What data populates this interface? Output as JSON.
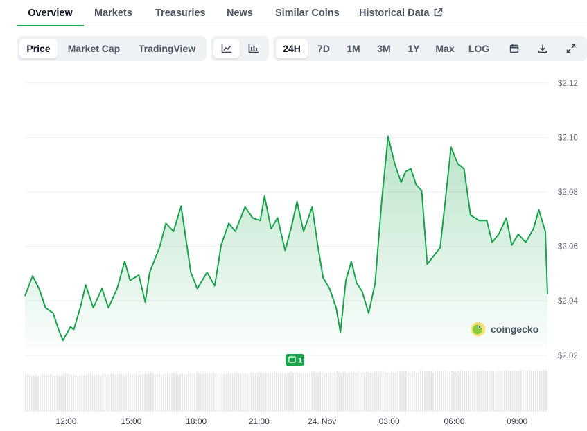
{
  "tabs": [
    {
      "label": "Overview",
      "active": true
    },
    {
      "label": "Markets"
    },
    {
      "label": "Treasuries"
    },
    {
      "label": "News"
    },
    {
      "label": "Similar Coins"
    },
    {
      "label": "Historical Data",
      "icon": "external-link-icon"
    }
  ],
  "view_modes": [
    "Price",
    "Market Cap",
    "TradingView"
  ],
  "view_active": "Price",
  "chart_types": [
    {
      "icon": "line-chart-icon",
      "active": true
    },
    {
      "icon": "candlestick-icon"
    }
  ],
  "ranges": [
    "24H",
    "7D",
    "1M",
    "3M",
    "1Y",
    "Max",
    "LOG"
  ],
  "range_active": "24H",
  "tool_icons": [
    "calendar-icon",
    "download-icon",
    "fullscreen-icon"
  ],
  "brand": {
    "name": "coingecko"
  },
  "event_marker": {
    "label": "1"
  },
  "colors": {
    "line": "#16a34a",
    "accent": "#16a34a",
    "volume": "#e5e7eb"
  },
  "chart_data": {
    "type": "area",
    "title": "",
    "xlabel": "",
    "ylabel": "",
    "y_ticks": [
      "$2.12",
      "$2.10",
      "$2.08",
      "$2.06",
      "$2.04",
      "$2.02"
    ],
    "ylim": [
      2.0225,
      2.1225
    ],
    "x_ticks": [
      "12:00",
      "15:00",
      "18:00",
      "21:00",
      "24. Nov",
      "03:00",
      "06:00",
      "09:00"
    ],
    "x_tick_hours": [
      1.9,
      4.9,
      7.9,
      10.8,
      13.7,
      16.8,
      19.8,
      22.7
    ],
    "xlim_hours": [
      0,
      24.1
    ],
    "grid": true,
    "series": [
      {
        "x_hours": [
          0,
          0.35,
          0.65,
          0.95,
          1.3,
          1.55,
          1.75,
          2.1,
          2.25,
          2.55,
          2.8,
          3.15,
          3.55,
          3.85,
          4.25,
          4.6,
          4.85,
          5.25,
          5.55,
          5.75,
          6.2,
          6.5,
          6.85,
          7.2,
          7.65,
          7.95,
          8.4,
          8.75,
          9.05,
          9.4,
          9.7,
          10.15,
          10.5,
          10.85,
          11.05,
          11.35,
          11.65,
          12.0,
          12.3,
          12.55,
          12.85,
          13.25,
          13.5,
          13.75,
          14.05,
          14.35,
          14.55,
          14.8,
          15.05,
          15.3,
          15.55,
          15.85,
          16.15,
          16.45,
          16.75,
          17.05,
          17.35,
          17.55,
          17.8,
          18.05,
          18.3,
          18.55,
          18.85,
          19.15,
          19.45,
          19.65,
          19.95,
          20.25,
          20.55,
          20.95,
          21.3,
          21.55,
          21.85,
          22.2,
          22.45,
          22.75,
          23.1,
          23.45,
          23.7,
          24.0,
          24.1
        ],
        "values": [
          2.0418,
          2.0492,
          2.0445,
          2.0375,
          2.0355,
          2.0295,
          2.0255,
          2.0305,
          2.0295,
          2.0375,
          2.0458,
          2.0375,
          2.0445,
          2.0375,
          2.0445,
          2.0545,
          2.0475,
          2.0495,
          2.0395,
          2.0505,
          2.0595,
          2.0685,
          2.0655,
          2.0748,
          2.0505,
          2.0445,
          2.0505,
          2.0455,
          2.0605,
          2.0685,
          2.0655,
          2.0745,
          2.0705,
          2.0695,
          2.0785,
          2.0665,
          2.0705,
          2.0585,
          2.0675,
          2.0765,
          2.0655,
          2.0745,
          2.0605,
          2.0485,
          2.0445,
          2.0375,
          2.0285,
          2.0475,
          2.0545,
          2.0465,
          2.0435,
          2.0355,
          2.0465,
          2.0765,
          2.1005,
          2.0905,
          2.0835,
          2.0875,
          2.0885,
          2.0825,
          2.0805,
          2.0535,
          2.0565,
          2.0595,
          2.0815,
          2.0965,
          2.0905,
          2.0885,
          2.0715,
          2.0695,
          2.0695,
          2.0615,
          2.0645,
          2.0705,
          2.0605,
          2.0645,
          2.0615,
          2.0665,
          2.0735,
          2.0655,
          2.0425
        ]
      }
    ],
    "volume": {
      "x_hours_range": [
        0,
        24.1
      ],
      "relative_start": 0.66,
      "relative_end": 0.74
    }
  }
}
